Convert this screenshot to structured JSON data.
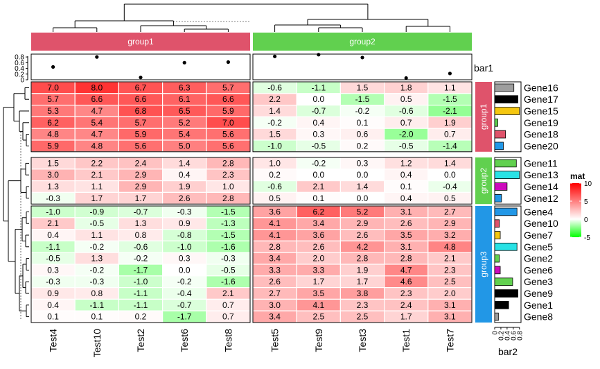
{
  "colors": {
    "group1": "#DF536B",
    "group2": "#61D04F",
    "group3": "#2297E6",
    "low": "#00FF00",
    "mid": "#FFFFFF",
    "high": "#FF0000"
  },
  "chart_data": {
    "type": "heatmap",
    "columns": [
      "Test4",
      "Test10",
      "Test2",
      "Test6",
      "Test8",
      "Test5",
      "Test9",
      "Test3",
      "Test1",
      "Test7"
    ],
    "column_groups": [
      {
        "name": "group1",
        "columns": [
          "Test4",
          "Test10",
          "Test2",
          "Test6",
          "Test8"
        ]
      },
      {
        "name": "group2",
        "columns": [
          "Test5",
          "Test9",
          "Test3",
          "Test1",
          "Test7"
        ]
      }
    ],
    "row_groups": [
      {
        "name": "group1",
        "rows": [
          "Gene16",
          "Gene17",
          "Gene15",
          "Gene19",
          "Gene18",
          "Gene20"
        ]
      },
      {
        "name": "group2",
        "rows": [
          "Gene11",
          "Gene13",
          "Gene14",
          "Gene12"
        ]
      },
      {
        "name": "group3",
        "rows": [
          "Gene4",
          "Gene10",
          "Gene7",
          "Gene5",
          "Gene2",
          "Gene6",
          "Gene3",
          "Gene9",
          "Gene1",
          "Gene8"
        ]
      }
    ],
    "values": [
      [
        7.0,
        8.0,
        6.7,
        6.3,
        5.7,
        -0.6,
        -1.1,
        1.5,
        1.8,
        1.1
      ],
      [
        5.7,
        6.6,
        6.6,
        6.1,
        6.6,
        2.2,
        0.0,
        -1.5,
        0.5,
        -1.5
      ],
      [
        5.3,
        4.7,
        6.8,
        6.5,
        5.9,
        1.4,
        -0.7,
        -0.2,
        -0.6,
        -2.1
      ],
      [
        6.2,
        5.4,
        5.7,
        5.2,
        7.0,
        -0.2,
        0.4,
        0.1,
        0.7,
        1.9
      ],
      [
        4.8,
        4.7,
        5.9,
        5.4,
        5.6,
        1.5,
        0.3,
        0.6,
        -2.0,
        0.7
      ],
      [
        5.9,
        4.8,
        5.6,
        5.0,
        5.6,
        -1.0,
        -0.5,
        0.2,
        -0.5,
        -1.4
      ],
      [
        1.5,
        2.2,
        2.4,
        1.4,
        2.8,
        1.0,
        -0.2,
        0.3,
        1.2,
        1.4
      ],
      [
        3.0,
        2.1,
        2.9,
        0.4,
        2.3,
        0.2,
        -0.0,
        -0.0,
        0.4,
        0.0
      ],
      [
        1.3,
        1.1,
        2.9,
        1.9,
        1.0,
        -0.6,
        2.1,
        1.4,
        0.1,
        -0.4
      ],
      [
        -0.3,
        1.7,
        1.7,
        2.6,
        2.8,
        0.5,
        0.1,
        -0.0,
        0.4,
        0.5
      ],
      [
        -1.0,
        -0.9,
        -0.7,
        -0.3,
        -1.5,
        3.6,
        6.2,
        5.2,
        3.1,
        2.7
      ],
      [
        2.1,
        -0.5,
        1.3,
        0.9,
        -1.3,
        4.1,
        3.4,
        2.9,
        2.6,
        2.9
      ],
      [
        0.4,
        1.1,
        0.8,
        -0.8,
        -1.5,
        4.1,
        3.6,
        2.6,
        3.5,
        3.2
      ],
      [
        -1.1,
        -0.2,
        -0.6,
        -1.0,
        -1.6,
        2.8,
        2.6,
        4.2,
        3.1,
        4.8
      ],
      [
        -0.5,
        1.3,
        -0.2,
        0.3,
        -0.3,
        3.4,
        2.0,
        2.8,
        2.8,
        2.1
      ],
      [
        0.3,
        -0.2,
        -1.7,
        -0.0,
        -0.5,
        3.3,
        3.3,
        1.9,
        4.7,
        2.3
      ],
      [
        -0.3,
        -0.3,
        -1.0,
        -0.2,
        -1.6,
        2.6,
        1.7,
        1.7,
        4.6,
        2.5
      ],
      [
        0.9,
        0.8,
        -1.1,
        -0.4,
        2.1,
        2.7,
        3.5,
        3.8,
        2.3,
        2.0
      ],
      [
        0.4,
        -1.1,
        -1.1,
        -0.7,
        0.7,
        3.0,
        4.1,
        2.3,
        2.4,
        3.1
      ],
      [
        0.1,
        0.1,
        0.2,
        -1.7,
        0.7,
        3.4,
        2.5,
        2.5,
        1.7,
        3.1
      ]
    ],
    "bar1": {
      "label": "bar1",
      "ticks": [
        "0",
        "0.2",
        "0.4",
        "0.6",
        "0.8"
      ],
      "ylim": [
        0,
        0.9
      ],
      "values": [
        0.45,
        0.8,
        0.08,
        0.6,
        0.62,
        0.82,
        0.88,
        0.78,
        0.06,
        0.22
      ]
    },
    "bar2": {
      "label": "bar2",
      "ticks": [
        "0",
        "0.2",
        "0.4",
        "0.6",
        "0.8"
      ],
      "xlim": [
        0,
        0.85
      ],
      "values": [
        0.62,
        0.75,
        0.8,
        0.1,
        0.35,
        0.28,
        0.7,
        0.8,
        0.4,
        0.22,
        0.72,
        0.15,
        0.18,
        0.72,
        0.15,
        0.18,
        0.58,
        0.75,
        0.45,
        0.12
      ],
      "colors": [
        "#9E9E9E",
        "#000000",
        "#F5C710",
        "#61D04F",
        "#DF536B",
        "#2297E6",
        "#61D04F",
        "#28E2E5",
        "#CD0BBC",
        "#2297E6",
        "#2297E6",
        "#DF536B",
        "#F5C710",
        "#28E2E5",
        "#61D04F",
        "#CD0BBC",
        "#61D04F",
        "#000000",
        "#000000",
        "#9E9E9E"
      ]
    },
    "legend": {
      "title": "mat",
      "ticks": [
        "10",
        "5",
        "0",
        "-5"
      ],
      "range": [
        -5,
        10
      ],
      "placement": "right"
    }
  }
}
